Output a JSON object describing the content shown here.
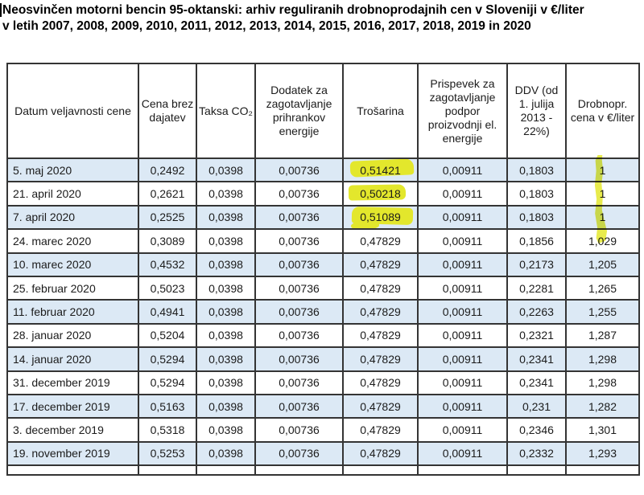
{
  "title": {
    "line1": "Neosvinčen motorni bencin 95-oktanski: arhiv reguliranih drobnoprodajnih cen v Sloveniji v €/liter",
    "line2": "v letih 2007, 2008, 2009, 2010, 2011, 2012, 2013, 2014, 2015, 2016, 2017, 2018, 2019 in 2020"
  },
  "table": {
    "columns": [
      "Datum veljavnosti cene",
      "Cena brez dajatev",
      "Taksa CO₂",
      "Dodatek za zagotavljanje prihrankov energije",
      "Trošarina",
      "Prispevek za zagotavljanje podpor proizvodnji el. energije",
      "DDV (od 1. julija 2013 - 22%)",
      "Drobnopr. cena v €/liter"
    ],
    "rows": [
      {
        "date": "5. maj 2020",
        "values": [
          "0,2492",
          "0,0398",
          "0,00736",
          "0,51421",
          "0,00911",
          "0,1803",
          "1"
        ],
        "highlighted": true
      },
      {
        "date": "21. april 2020",
        "values": [
          "0,2621",
          "0,0398",
          "0,00736",
          "0,50218",
          "0,00911",
          "0,1803",
          "1"
        ],
        "highlighted": true
      },
      {
        "date": "7. april 2020",
        "values": [
          "0,2525",
          "0,0398",
          "0,00736",
          "0,51089",
          "0,00911",
          "0,1803",
          "1"
        ],
        "highlighted": true
      },
      {
        "date": "24. marec 2020",
        "values": [
          "0,3089",
          "0,0398",
          "0,00736",
          "0,47829",
          "0,00911",
          "0,1856",
          "1,029"
        ],
        "highlighted": false
      },
      {
        "date": "10. marec 2020",
        "values": [
          "0,4532",
          "0,0398",
          "0,00736",
          "0,47829",
          "0,00911",
          "0,2173",
          "1,205"
        ],
        "highlighted": false
      },
      {
        "date": "25. februar 2020",
        "values": [
          "0,5023",
          "0,0398",
          "0,00736",
          "0,47829",
          "0,00911",
          "0,2281",
          "1,265"
        ],
        "highlighted": false
      },
      {
        "date": "11. februar 2020",
        "values": [
          "0,4941",
          "0,0398",
          "0,00736",
          "0,47829",
          "0,00911",
          "0,2263",
          "1,255"
        ],
        "highlighted": false
      },
      {
        "date": "28. januar 2020",
        "values": [
          "0,5204",
          "0,0398",
          "0,00736",
          "0,47829",
          "0,00911",
          "0,2321",
          "1,287"
        ],
        "highlighted": false
      },
      {
        "date": "14. januar 2020",
        "values": [
          "0,5294",
          "0,0398",
          "0,00736",
          "0,47829",
          "0,00911",
          "0,2341",
          "1,298"
        ],
        "highlighted": false
      },
      {
        "date": "31. december 2019",
        "values": [
          "0,5294",
          "0,0398",
          "0,00736",
          "0,47829",
          "0,00911",
          "0,2341",
          "1,298"
        ],
        "highlighted": false
      },
      {
        "date": "17. december 2019",
        "values": [
          "0,5163",
          "0,0398",
          "0,00736",
          "0,47829",
          "0,00911",
          "0,231",
          "1,282"
        ],
        "highlighted": false
      },
      {
        "date": "3. december 2019",
        "values": [
          "0,5318",
          "0,0398",
          "0,00736",
          "0,47829",
          "0,00911",
          "0,2346",
          "1,301"
        ],
        "highlighted": false
      },
      {
        "date": "19. november 2019",
        "values": [
          "0,5253",
          "0,0398",
          "0,00736",
          "0,47829",
          "0,00911",
          "0,2332",
          "1,293"
        ],
        "highlighted": false
      }
    ]
  },
  "colors": {
    "row_alt_background": "#dce9f5",
    "highlight_yellow": "#e3e72c",
    "table_border": "#343434"
  }
}
